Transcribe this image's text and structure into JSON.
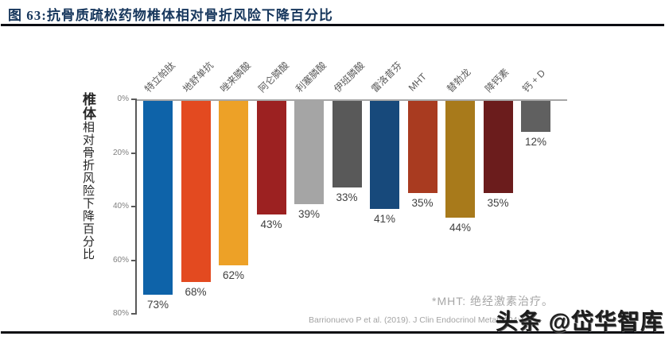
{
  "header": {
    "title": "图 63:抗骨质疏松药物椎体相对骨折风险下降百分比"
  },
  "chart_data": {
    "type": "bar",
    "title": "抗骨质疏松药物椎体相对骨折风险下降百分比",
    "orientation": "columns-hanging-down-from-zero",
    "categories": [
      "特立帕肽",
      "地舒单抗",
      "唑来膦酸",
      "阿仑膦酸",
      "利塞膦酸",
      "伊班膦酸",
      "雷洛昔芬",
      "MHT",
      "替勃龙",
      "降钙素",
      "钙 + D"
    ],
    "values": [
      73,
      68,
      62,
      43,
      39,
      33,
      41,
      35,
      44,
      35,
      12
    ],
    "value_labels": [
      "73%",
      "68%",
      "62%",
      "43%",
      "39%",
      "33%",
      "41%",
      "35%",
      "44%",
      "35%",
      "12%"
    ],
    "bar_colors": [
      "#0e63a9",
      "#e34a20",
      "#eda127",
      "#9c2121",
      "#a5a5a5",
      "#595959",
      "#17497b",
      "#a93b20",
      "#a87a1b",
      "#6b1c1c",
      "#606060"
    ],
    "ylabel_bold": "椎体",
    "ylabel_rest": "相对骨折风险下降百分比",
    "yticks": [
      "0%",
      "20%",
      "40%",
      "60%",
      "80%"
    ],
    "ylim": [
      0,
      80
    ],
    "grid": false,
    "legend": false
  },
  "footnote": "*MHT: 绝经激素治疗。",
  "source": "Barrionuevo P et al. (2019). J Clin Endocrinol Metab 104:162",
  "watermark": "头条 @岱华智库"
}
